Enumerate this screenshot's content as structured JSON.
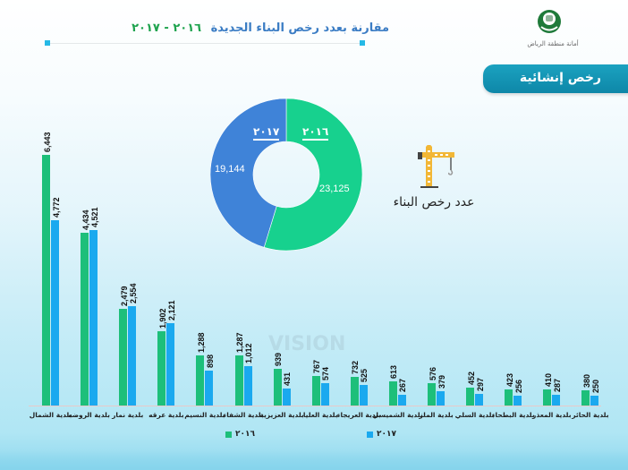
{
  "header": {
    "title_main": "مقارنة بعدد رخص البناء الجديدة",
    "title_years": "٢٠١٦ - ٢٠١٧",
    "logo_caption": "أمانة منطقة الرياض",
    "section_tab": "رخص إنشائية"
  },
  "donut": {
    "label_2016": "٢٠١٦",
    "label_2017": "٢٠١٧",
    "value_2016": "23,125",
    "value_2017": "19,144",
    "color_2016": "#17d18e",
    "color_2017": "#3f83d8",
    "caption": "عدد رخص البناء"
  },
  "legend": {
    "s2016": "٢٠١٦",
    "s2017": "٢٠١٧",
    "color_2016": "#1dbf7a",
    "color_2017": "#1aa9ef"
  },
  "chart_data": [
    {
      "type": "pie",
      "title": "عدد رخص البناء",
      "categories": [
        "2016",
        "2017"
      ],
      "values": [
        23125,
        19144
      ],
      "donut": true
    },
    {
      "type": "bar",
      "title": "مقارنة بعدد رخص البناء الجديدة 2016 - 2017",
      "categories": [
        "بلدية الشمال",
        "بلدية الروضه",
        "بلدية نمار",
        "بلدية عرقه",
        "بلدية النسيم",
        "بلدية الشفاء",
        "بلدية العزيزية",
        "بلدية العليا",
        "بلدية العريجاء",
        "بلدية الشميسي",
        "بلدية الملز",
        "بلدية السلي",
        "بلدية البطحاء",
        "بلدية المعذر",
        "بلدية الحائر"
      ],
      "series": [
        {
          "name": "2016",
          "color": "#1dbf7a",
          "values": [
            6443,
            4434,
            2479,
            1902,
            1288,
            1287,
            939,
            767,
            732,
            613,
            576,
            452,
            423,
            410,
            380
          ],
          "labels": [
            "6,443",
            "4,434",
            "2,479",
            "1,902",
            "1,288",
            "1,287",
            "939",
            "767",
            "732",
            "613",
            "576",
            "452",
            "423",
            "410",
            "380"
          ]
        },
        {
          "name": "2017",
          "color": "#1aa9ef",
          "values": [
            4772,
            4521,
            2554,
            2121,
            898,
            1012,
            431,
            574,
            525,
            267,
            379,
            297,
            256,
            287,
            250
          ],
          "labels": [
            "4,772",
            "4,521",
            "2,554",
            "2,121",
            "898",
            "1,012",
            "431",
            "574",
            "525",
            "267",
            "379",
            "297",
            "256",
            "287",
            "250"
          ]
        }
      ],
      "xlabel": "",
      "ylabel": "",
      "ylim": [
        0,
        7000
      ],
      "grid": false,
      "legend_position": "bottom",
      "data_labels": true
    }
  ]
}
